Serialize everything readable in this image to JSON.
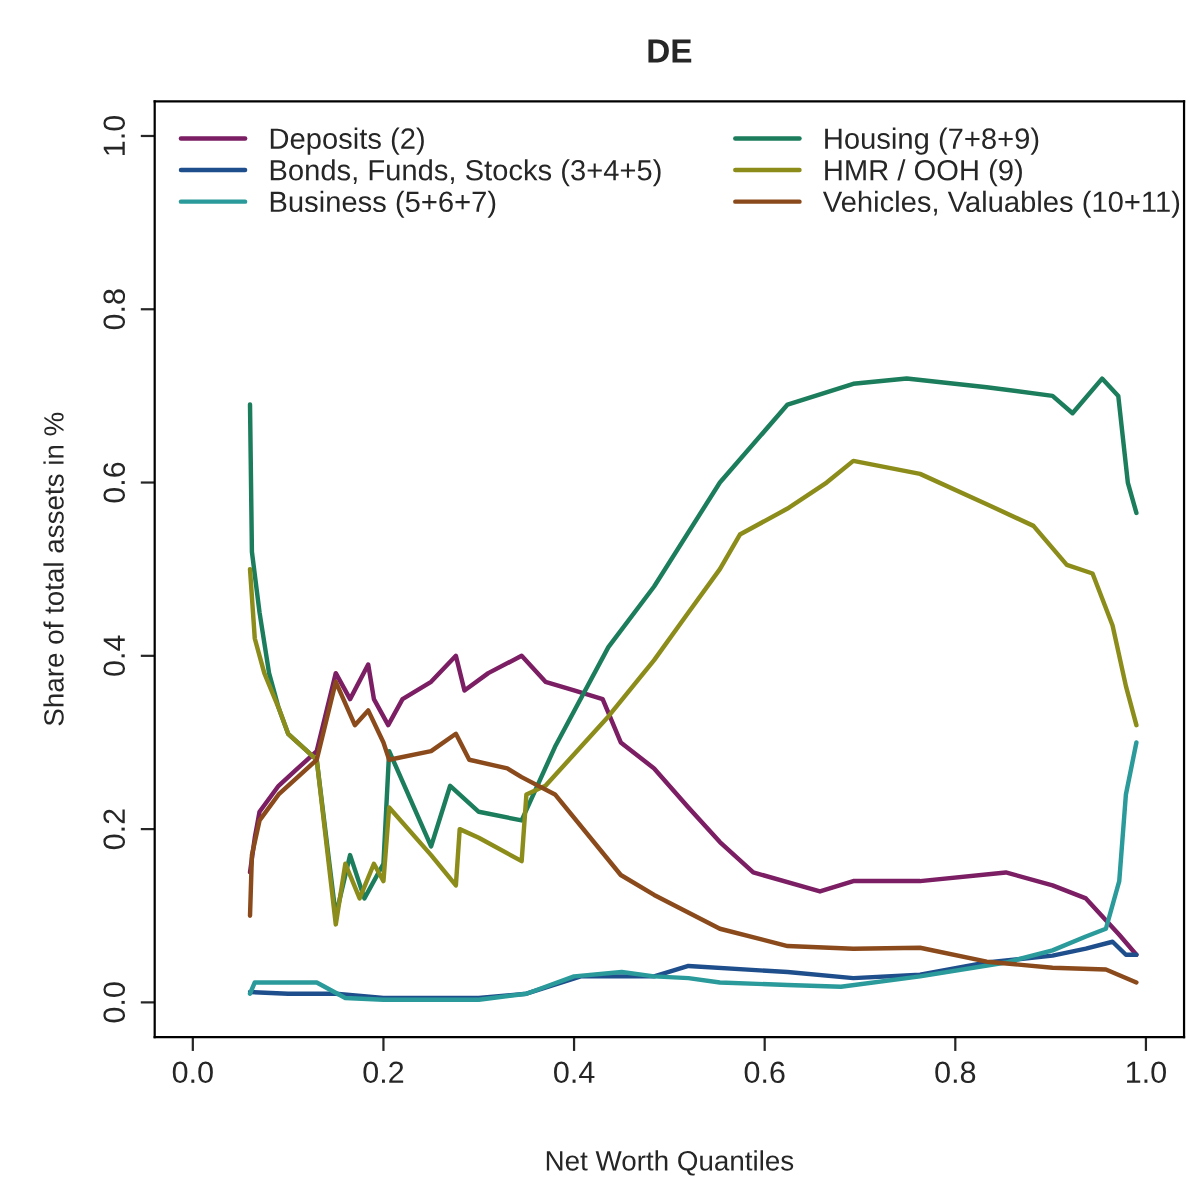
{
  "chart_data": {
    "type": "line",
    "title": "DE",
    "xlabel": "Net Worth Quantiles",
    "ylabel": "Share of total assets in %",
    "xlim": [
      -0.04,
      1.04
    ],
    "ylim": [
      -0.04,
      1.04
    ],
    "xticks": [
      {
        "value": 0,
        "label": "0.0"
      },
      {
        "value": 0.2,
        "label": "0.2"
      },
      {
        "value": 0.4,
        "label": "0.4"
      },
      {
        "value": 0.6,
        "label": "0.6"
      },
      {
        "value": 0.8,
        "label": "0.8"
      },
      {
        "value": 1,
        "label": "1.0"
      }
    ],
    "yticks": [
      {
        "value": 0,
        "label": "0.0"
      },
      {
        "value": 0.2,
        "label": "0.2"
      },
      {
        "value": 0.4,
        "label": "0.4"
      },
      {
        "value": 0.6,
        "label": "0.6"
      },
      {
        "value": 0.8,
        "label": "0.8"
      },
      {
        "value": 1,
        "label": "1.0"
      }
    ],
    "grid": false,
    "legend": "top left",
    "marker": "none",
    "line_style": "solid",
    "series": [
      {
        "name": "Deposits (2)",
        "color": "#7b1e63",
        "x": [
          0.06,
          0.065,
          0.07,
          0.09,
          0.11,
          0.13,
          0.15,
          0.165,
          0.184,
          0.19,
          0.205,
          0.22,
          0.25,
          0.276,
          0.285,
          0.31,
          0.345,
          0.37,
          0.4,
          0.43,
          0.449,
          0.484,
          0.52,
          0.553,
          0.588,
          0.658,
          0.693,
          0.763,
          0.853,
          0.902,
          0.937,
          0.972,
          0.99
        ],
        "values": [
          0.15,
          0.19,
          0.22,
          0.25,
          0.27,
          0.29,
          0.38,
          0.35,
          0.39,
          0.35,
          0.32,
          0.35,
          0.37,
          0.4,
          0.36,
          0.38,
          0.4,
          0.37,
          0.36,
          0.35,
          0.3,
          0.27,
          0.225,
          0.185,
          0.15,
          0.128,
          0.14,
          0.14,
          0.15,
          0.135,
          0.12,
          0.078,
          0.055
        ]
      },
      {
        "name": "Bonds, Funds, Stocks (3+4+5)",
        "color": "#1f4e8c",
        "x": [
          0.06,
          0.1,
          0.15,
          0.2,
          0.25,
          0.3,
          0.35,
          0.407,
          0.484,
          0.52,
          0.624,
          0.693,
          0.763,
          0.833,
          0.902,
          0.937,
          0.965,
          0.979,
          0.99
        ],
        "values": [
          0.012,
          0.01,
          0.01,
          0.005,
          0.005,
          0.005,
          0.01,
          0.03,
          0.03,
          0.042,
          0.035,
          0.028,
          0.032,
          0.046,
          0.054,
          0.062,
          0.07,
          0.055,
          0.055
        ]
      },
      {
        "name": "Business (5+6+7)",
        "color": "#2a9a9a",
        "x": [
          0.06,
          0.065,
          0.1,
          0.13,
          0.16,
          0.2,
          0.25,
          0.3,
          0.35,
          0.4,
          0.45,
          0.484,
          0.52,
          0.553,
          0.624,
          0.68,
          0.763,
          0.853,
          0.902,
          0.937,
          0.958,
          0.972,
          0.979,
          0.99
        ],
        "values": [
          0.01,
          0.023,
          0.023,
          0.023,
          0.005,
          0.003,
          0.003,
          0.003,
          0.01,
          0.03,
          0.035,
          0.03,
          0.028,
          0.023,
          0.02,
          0.018,
          0.03,
          0.046,
          0.06,
          0.076,
          0.085,
          0.14,
          0.24,
          0.3
        ]
      },
      {
        "name": "Housing (7+8+9)",
        "color": "#1b7d5c",
        "x": [
          0.06,
          0.062,
          0.07,
          0.08,
          0.09,
          0.1,
          0.12,
          0.13,
          0.15,
          0.165,
          0.18,
          0.2,
          0.206,
          0.25,
          0.27,
          0.3,
          0.345,
          0.38,
          0.436,
          0.484,
          0.553,
          0.624,
          0.693,
          0.749,
          0.833,
          0.902,
          0.923,
          0.954,
          0.971,
          0.981,
          0.99
        ],
        "values": [
          0.69,
          0.52,
          0.45,
          0.38,
          0.34,
          0.31,
          0.29,
          0.28,
          0.1,
          0.17,
          0.12,
          0.16,
          0.29,
          0.18,
          0.25,
          0.22,
          0.21,
          0.295,
          0.41,
          0.48,
          0.6,
          0.69,
          0.714,
          0.72,
          0.71,
          0.7,
          0.68,
          0.72,
          0.7,
          0.6,
          0.565
        ]
      },
      {
        "name": "HMR / OOH (9)",
        "color": "#8c8c1a",
        "x": [
          0.06,
          0.065,
          0.075,
          0.09,
          0.1,
          0.13,
          0.15,
          0.16,
          0.175,
          0.19,
          0.2,
          0.206,
          0.25,
          0.276,
          0.28,
          0.3,
          0.345,
          0.35,
          0.37,
          0.436,
          0.484,
          0.52,
          0.553,
          0.574,
          0.624,
          0.665,
          0.693,
          0.763,
          0.833,
          0.882,
          0.917,
          0.944,
          0.965,
          0.979,
          0.99
        ],
        "values": [
          0.5,
          0.42,
          0.38,
          0.34,
          0.31,
          0.28,
          0.09,
          0.16,
          0.12,
          0.16,
          0.14,
          0.225,
          0.17,
          0.135,
          0.2,
          0.19,
          0.163,
          0.24,
          0.25,
          0.33,
          0.395,
          0.45,
          0.5,
          0.54,
          0.57,
          0.6,
          0.625,
          0.61,
          0.575,
          0.55,
          0.505,
          0.495,
          0.435,
          0.365,
          0.32
        ]
      },
      {
        "name": "Vehicles, Valuables (10+11)",
        "color": "#8b4a1b",
        "x": [
          0.06,
          0.062,
          0.07,
          0.09,
          0.11,
          0.13,
          0.15,
          0.17,
          0.184,
          0.2,
          0.206,
          0.25,
          0.276,
          0.29,
          0.33,
          0.345,
          0.38,
          0.449,
          0.484,
          0.553,
          0.624,
          0.693,
          0.763,
          0.833,
          0.902,
          0.958,
          0.99
        ],
        "values": [
          0.1,
          0.17,
          0.21,
          0.24,
          0.26,
          0.28,
          0.37,
          0.32,
          0.337,
          0.3,
          0.28,
          0.29,
          0.31,
          0.28,
          0.27,
          0.26,
          0.24,
          0.147,
          0.124,
          0.085,
          0.065,
          0.062,
          0.063,
          0.047,
          0.04,
          0.038,
          0.023
        ]
      }
    ]
  }
}
